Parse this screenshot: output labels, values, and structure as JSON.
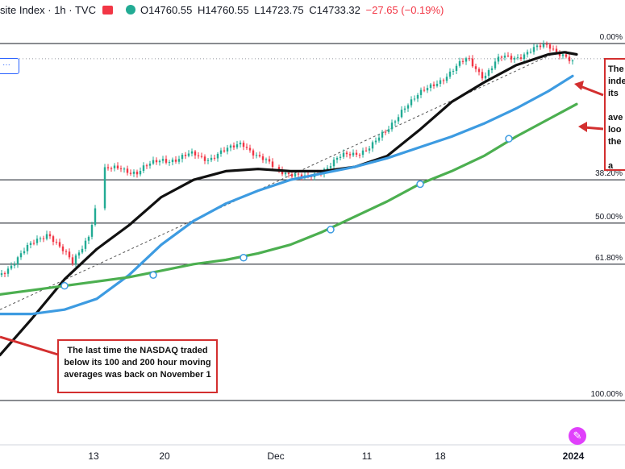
{
  "legend": {
    "symbol": "site Index · 1h · TVC",
    "open": "O14760.55",
    "high": "H14760.55",
    "low": "L14723.75",
    "close": "C14733.32",
    "change": "−27.65 (−0.19%)"
  },
  "toolbar": {
    "scale_button": "···"
  },
  "fib_levels": [
    {
      "label": "0.00%",
      "price": 14830
    },
    {
      "label": "38.20%",
      "price": 14200
    },
    {
      "label": "50.00%",
      "price": 14000
    },
    {
      "label": "61.80%",
      "price": 13810
    },
    {
      "label": "100.00%",
      "price": 13180
    }
  ],
  "annotations": {
    "note1": "The last time the NASDAQ traded below its 100 and 200 hour moving averages was back on November 1",
    "note2": "The\ninde\nits\n\nave\nloo\nthe\n\na"
  },
  "x_ticks": [
    {
      "label": "13",
      "bold": false
    },
    {
      "label": "20",
      "bold": false
    },
    {
      "label": "Dec",
      "bold": false
    },
    {
      "label": "11",
      "bold": false
    },
    {
      "label": "18",
      "bold": false
    },
    {
      "label": "2024",
      "bold": true
    }
  ],
  "colors": {
    "up": "#22ab94",
    "down": "#f23645",
    "ma_black": "#111111",
    "ma_blue": "#3d9be1",
    "ma_green": "#4caf50",
    "annotation": "#d32f2f",
    "level_line": "#131722"
  },
  "chart_data": {
    "type": "line",
    "title": "",
    "xlabel": "",
    "ylabel": "",
    "ylim": [
      13150,
      14860
    ],
    "x_tick_labels": [
      "13",
      "20",
      "Dec",
      "11",
      "18",
      "2024"
    ],
    "series": [
      {
        "name": "",
        "color": "#111111",
        "x": [
          0,
          40,
          80,
          120,
          160,
          200,
          240,
          280,
          320,
          360,
          400,
          440,
          480,
          520,
          560,
          600,
          640,
          680,
          700,
          715
        ],
        "y": [
          13390,
          13560,
          13740,
          13880,
          13990,
          14120,
          14200,
          14240,
          14250,
          14240,
          14240,
          14260,
          14310,
          14430,
          14560,
          14650,
          14730,
          14780,
          14790,
          14780
        ]
      },
      {
        "name": "",
        "color": "#3d9be1",
        "x": [
          0,
          40,
          80,
          120,
          160,
          200,
          240,
          280,
          320,
          360,
          400,
          440,
          480,
          520,
          560,
          600,
          640,
          680,
          710
        ],
        "y": [
          13580,
          13580,
          13600,
          13650,
          13760,
          13900,
          14010,
          14090,
          14150,
          14200,
          14230,
          14260,
          14300,
          14350,
          14400,
          14460,
          14530,
          14610,
          14680
        ]
      },
      {
        "name": "",
        "color": "#4caf50",
        "x": [
          0,
          40,
          80,
          120,
          160,
          200,
          240,
          280,
          320,
          360,
          400,
          440,
          480,
          520,
          560,
          600,
          640,
          680,
          715
        ],
        "y": [
          13670,
          13690,
          13710,
          13730,
          13750,
          13780,
          13810,
          13830,
          13860,
          13900,
          13960,
          14030,
          14100,
          14180,
          14240,
          14310,
          14400,
          14480,
          14550
        ]
      }
    ],
    "price_path": {
      "x": [
        0,
        30,
        60,
        90,
        110,
        130,
        150,
        170,
        200,
        220,
        240,
        260,
        280,
        300,
        320,
        340,
        360,
        380,
        400,
        420,
        440,
        460,
        480,
        500,
        520,
        540,
        560,
        580,
        600,
        620,
        640,
        660,
        680,
        700,
        712
      ],
      "y": [
        13760,
        13870,
        13960,
        13810,
        13950,
        14240,
        14260,
        14230,
        14300,
        14290,
        14320,
        14300,
        14330,
        14380,
        14300,
        14260,
        14230,
        14200,
        14250,
        14300,
        14320,
        14360,
        14420,
        14540,
        14590,
        14650,
        14700,
        14760,
        14680,
        14760,
        14770,
        14800,
        14820,
        14780,
        14730
      ]
    },
    "trendline": {
      "x": [
        0,
        690
      ],
      "y": [
        13600,
        14790
      ]
    },
    "marker_points": [
      {
        "series": 2,
        "x": 80,
        "y": 13710
      },
      {
        "series": 2,
        "x": 190,
        "y": 13760
      },
      {
        "series": 2,
        "x": 302,
        "y": 13840
      },
      {
        "series": 2,
        "x": 410,
        "y": 13970
      },
      {
        "series": 2,
        "x": 521,
        "y": 14180
      },
      {
        "series": 2,
        "x": 631,
        "y": 14390
      }
    ]
  }
}
